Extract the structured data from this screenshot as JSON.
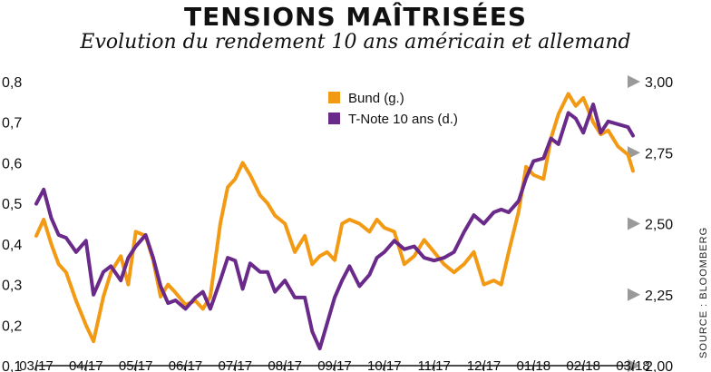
{
  "chart_data": {
    "type": "line",
    "title": "TENSIONS MAÎTRISÉES",
    "subtitle": "Evolution du rendement 10 ans américain et allemand",
    "source": "SOURCE : BLOOMBERG",
    "x_labels": [
      "03/17",
      "04/17",
      "05/17",
      "06/17",
      "07/17",
      "08/17",
      "09/17",
      "10/17",
      "11/17",
      "12/17",
      "01/18",
      "02/18",
      "03/18"
    ],
    "y_left": {
      "ticks": [
        "0,8",
        "0,7",
        "0,6",
        "0,5",
        "0,4",
        "0,3",
        "0,2",
        "0,1"
      ],
      "range": [
        0.1,
        0.8
      ]
    },
    "y_right": {
      "ticks": [
        "3,00",
        "2,75",
        "2,50",
        "2,25",
        "2,00"
      ],
      "range": [
        2.0,
        3.0
      ]
    },
    "grid": false,
    "legend_position": "top-center",
    "colors": {
      "bund": "#f39a14",
      "tnote": "#6a2a8a",
      "arrow": "#9a9a9a",
      "axis": "#111111"
    },
    "series": [
      {
        "name": "Bund (g.)",
        "axis": "left",
        "x": [
          0,
          0.15,
          0.3,
          0.45,
          0.6,
          0.8,
          1.0,
          1.15,
          1.35,
          1.5,
          1.7,
          1.85,
          2.0,
          2.2,
          2.35,
          2.5,
          2.65,
          2.8,
          3.0,
          3.2,
          3.35,
          3.5,
          3.7,
          3.85,
          4.0,
          4.15,
          4.3,
          4.5,
          4.65,
          4.8,
          5.0,
          5.2,
          5.4,
          5.55,
          5.7,
          5.85,
          6.0,
          6.15,
          6.3,
          6.5,
          6.7,
          6.85,
          7.0,
          7.2,
          7.4,
          7.6,
          7.8,
          8.0,
          8.2,
          8.4,
          8.6,
          8.8,
          9.0,
          9.2,
          9.35,
          9.5,
          9.7,
          9.85,
          10.0,
          10.2,
          10.35,
          10.5,
          10.7,
          10.85,
          11.0,
          11.2,
          11.35,
          11.5,
          11.7,
          11.9,
          12.0
        ],
        "values": [
          0.42,
          0.46,
          0.4,
          0.35,
          0.33,
          0.26,
          0.2,
          0.16,
          0.27,
          0.33,
          0.37,
          0.3,
          0.43,
          0.42,
          0.36,
          0.27,
          0.3,
          0.28,
          0.25,
          0.26,
          0.24,
          0.27,
          0.45,
          0.54,
          0.56,
          0.6,
          0.57,
          0.52,
          0.5,
          0.47,
          0.45,
          0.38,
          0.42,
          0.35,
          0.37,
          0.38,
          0.36,
          0.45,
          0.46,
          0.45,
          0.43,
          0.46,
          0.44,
          0.43,
          0.35,
          0.37,
          0.41,
          0.38,
          0.35,
          0.33,
          0.35,
          0.38,
          0.3,
          0.31,
          0.3,
          0.38,
          0.48,
          0.59,
          0.57,
          0.56,
          0.66,
          0.72,
          0.77,
          0.74,
          0.76,
          0.7,
          0.67,
          0.68,
          0.64,
          0.62,
          0.58
        ]
      },
      {
        "name": "T-Note 10 ans (d.)",
        "axis": "right",
        "x": [
          0,
          0.15,
          0.3,
          0.45,
          0.6,
          0.8,
          1.0,
          1.15,
          1.35,
          1.5,
          1.7,
          1.85,
          2.0,
          2.2,
          2.35,
          2.5,
          2.65,
          2.8,
          3.0,
          3.2,
          3.35,
          3.5,
          3.7,
          3.85,
          4.0,
          4.15,
          4.3,
          4.5,
          4.65,
          4.8,
          5.0,
          5.2,
          5.4,
          5.55,
          5.7,
          5.85,
          6.0,
          6.15,
          6.3,
          6.5,
          6.7,
          6.85,
          7.0,
          7.2,
          7.4,
          7.6,
          7.8,
          8.0,
          8.2,
          8.4,
          8.6,
          8.8,
          9.0,
          9.2,
          9.35,
          9.5,
          9.7,
          9.85,
          10.0,
          10.2,
          10.35,
          10.5,
          10.7,
          10.85,
          11.0,
          11.2,
          11.35,
          11.5,
          11.7,
          11.9,
          12.0
        ],
        "values": [
          2.57,
          2.62,
          2.52,
          2.46,
          2.45,
          2.4,
          2.44,
          2.25,
          2.33,
          2.35,
          2.3,
          2.38,
          2.42,
          2.46,
          2.38,
          2.28,
          2.22,
          2.23,
          2.2,
          2.24,
          2.26,
          2.2,
          2.3,
          2.38,
          2.37,
          2.27,
          2.36,
          2.33,
          2.33,
          2.26,
          2.3,
          2.24,
          2.24,
          2.12,
          2.06,
          2.15,
          2.24,
          2.3,
          2.35,
          2.28,
          2.32,
          2.38,
          2.4,
          2.44,
          2.41,
          2.42,
          2.38,
          2.37,
          2.38,
          2.4,
          2.47,
          2.53,
          2.5,
          2.54,
          2.55,
          2.54,
          2.58,
          2.66,
          2.72,
          2.73,
          2.8,
          2.78,
          2.89,
          2.87,
          2.82,
          2.92,
          2.82,
          2.86,
          2.85,
          2.84,
          2.81
        ]
      }
    ]
  }
}
